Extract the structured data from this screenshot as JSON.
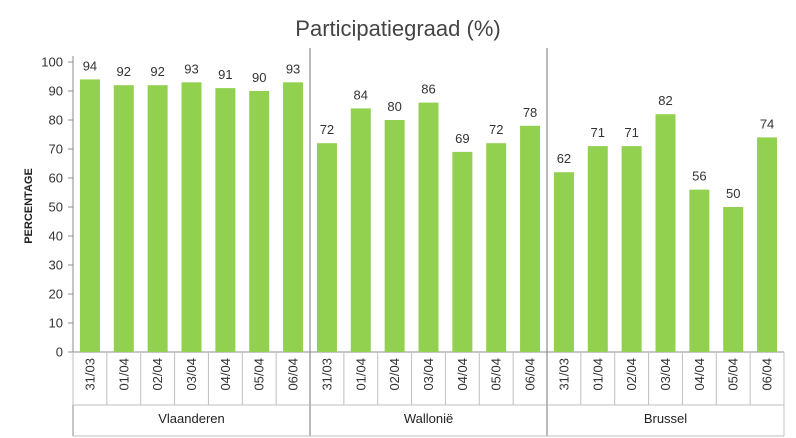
{
  "chart_data": {
    "type": "bar",
    "title": "Participatiegraad (%)",
    "xlabel": "",
    "ylabel": "PERCENTAGE",
    "ylim": [
      0,
      100
    ],
    "yticks": [
      0,
      10,
      20,
      30,
      40,
      50,
      60,
      70,
      80,
      90,
      100
    ],
    "grid": false,
    "legend": "none",
    "bar_color": "#92d050",
    "groups": [
      {
        "name": "Vlaanderen",
        "categories": [
          "31/03",
          "01/04",
          "02/04",
          "03/04",
          "04/04",
          "05/04",
          "06/04"
        ],
        "values": [
          94,
          92,
          92,
          93,
          91,
          90,
          93
        ]
      },
      {
        "name": "Wallonië",
        "categories": [
          "31/03",
          "01/04",
          "02/04",
          "03/04",
          "04/04",
          "05/04",
          "06/04"
        ],
        "values": [
          72,
          84,
          80,
          86,
          69,
          72,
          78
        ]
      },
      {
        "name": "Brussel",
        "categories": [
          "31/03",
          "01/04",
          "02/04",
          "03/04",
          "04/04",
          "05/04",
          "06/04"
        ],
        "values": [
          62,
          71,
          71,
          82,
          56,
          50,
          74
        ]
      }
    ]
  }
}
